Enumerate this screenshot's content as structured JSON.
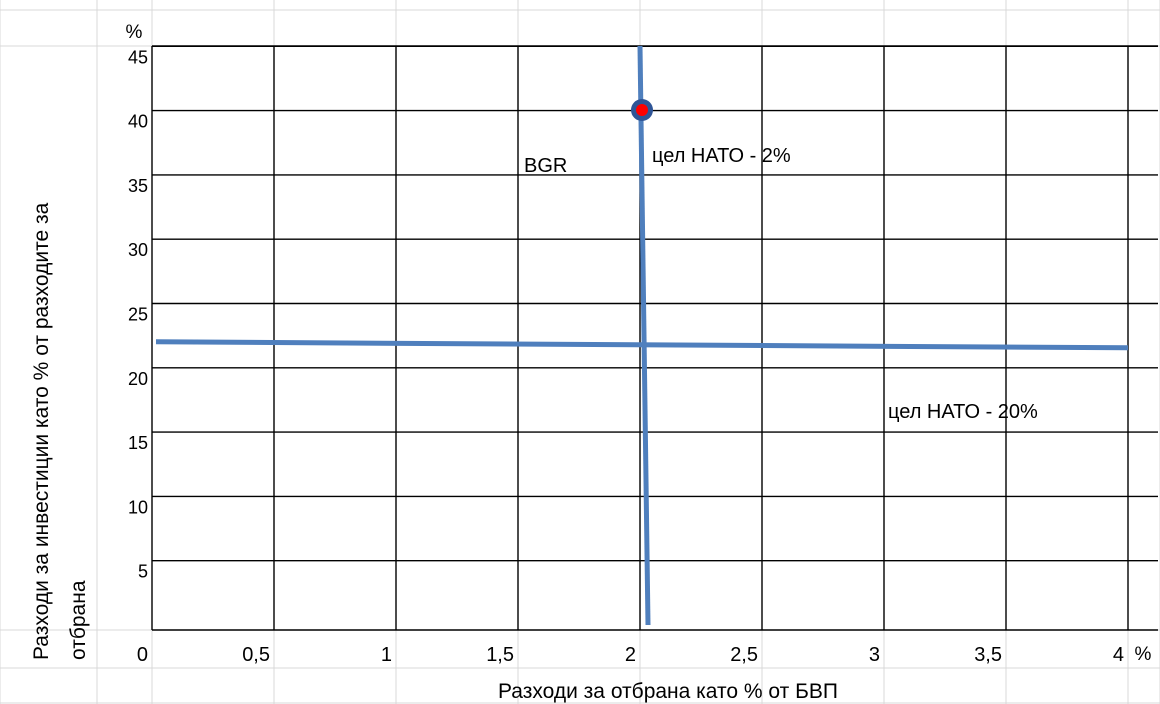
{
  "chart_data": {
    "type": "scatter",
    "title": "",
    "xlabel": "Разходи за отбрана като % от БВП",
    "ylabel_line1": "Разходи за инвестиции като  % от разходите за",
    "ylabel_line2": "отбрана",
    "x_unit": "%",
    "y_unit": "%",
    "xlim": [
      0,
      4
    ],
    "ylim": [
      0,
      45
    ],
    "x_ticks": [
      "0",
      "0,5",
      "1",
      "1,5",
      "2",
      "2,5",
      "3",
      "3,5",
      "4"
    ],
    "x_tick_values": [
      0,
      0.5,
      1,
      1.5,
      2,
      2.5,
      3,
      3.5,
      4
    ],
    "y_ticks": [
      "5",
      "10",
      "15",
      "20",
      "25",
      "30",
      "35",
      "40",
      "45"
    ],
    "y_tick_values": [
      5,
      10,
      15,
      20,
      25,
      30,
      35,
      40,
      45
    ],
    "grid": true,
    "points": [
      {
        "x": 2.0,
        "y": 40.5,
        "label": "BGR",
        "color": "#ff0000",
        "edge_color": "#2f5597"
      }
    ],
    "reference_lines": [
      {
        "orientation": "vertical",
        "value": 2,
        "label": "цел НАТО - 2%",
        "color": "#4f7fbd"
      },
      {
        "orientation": "horizontal",
        "value": 20,
        "label": "цел НАТО - 20%",
        "color": "#4f7fbd"
      }
    ]
  }
}
